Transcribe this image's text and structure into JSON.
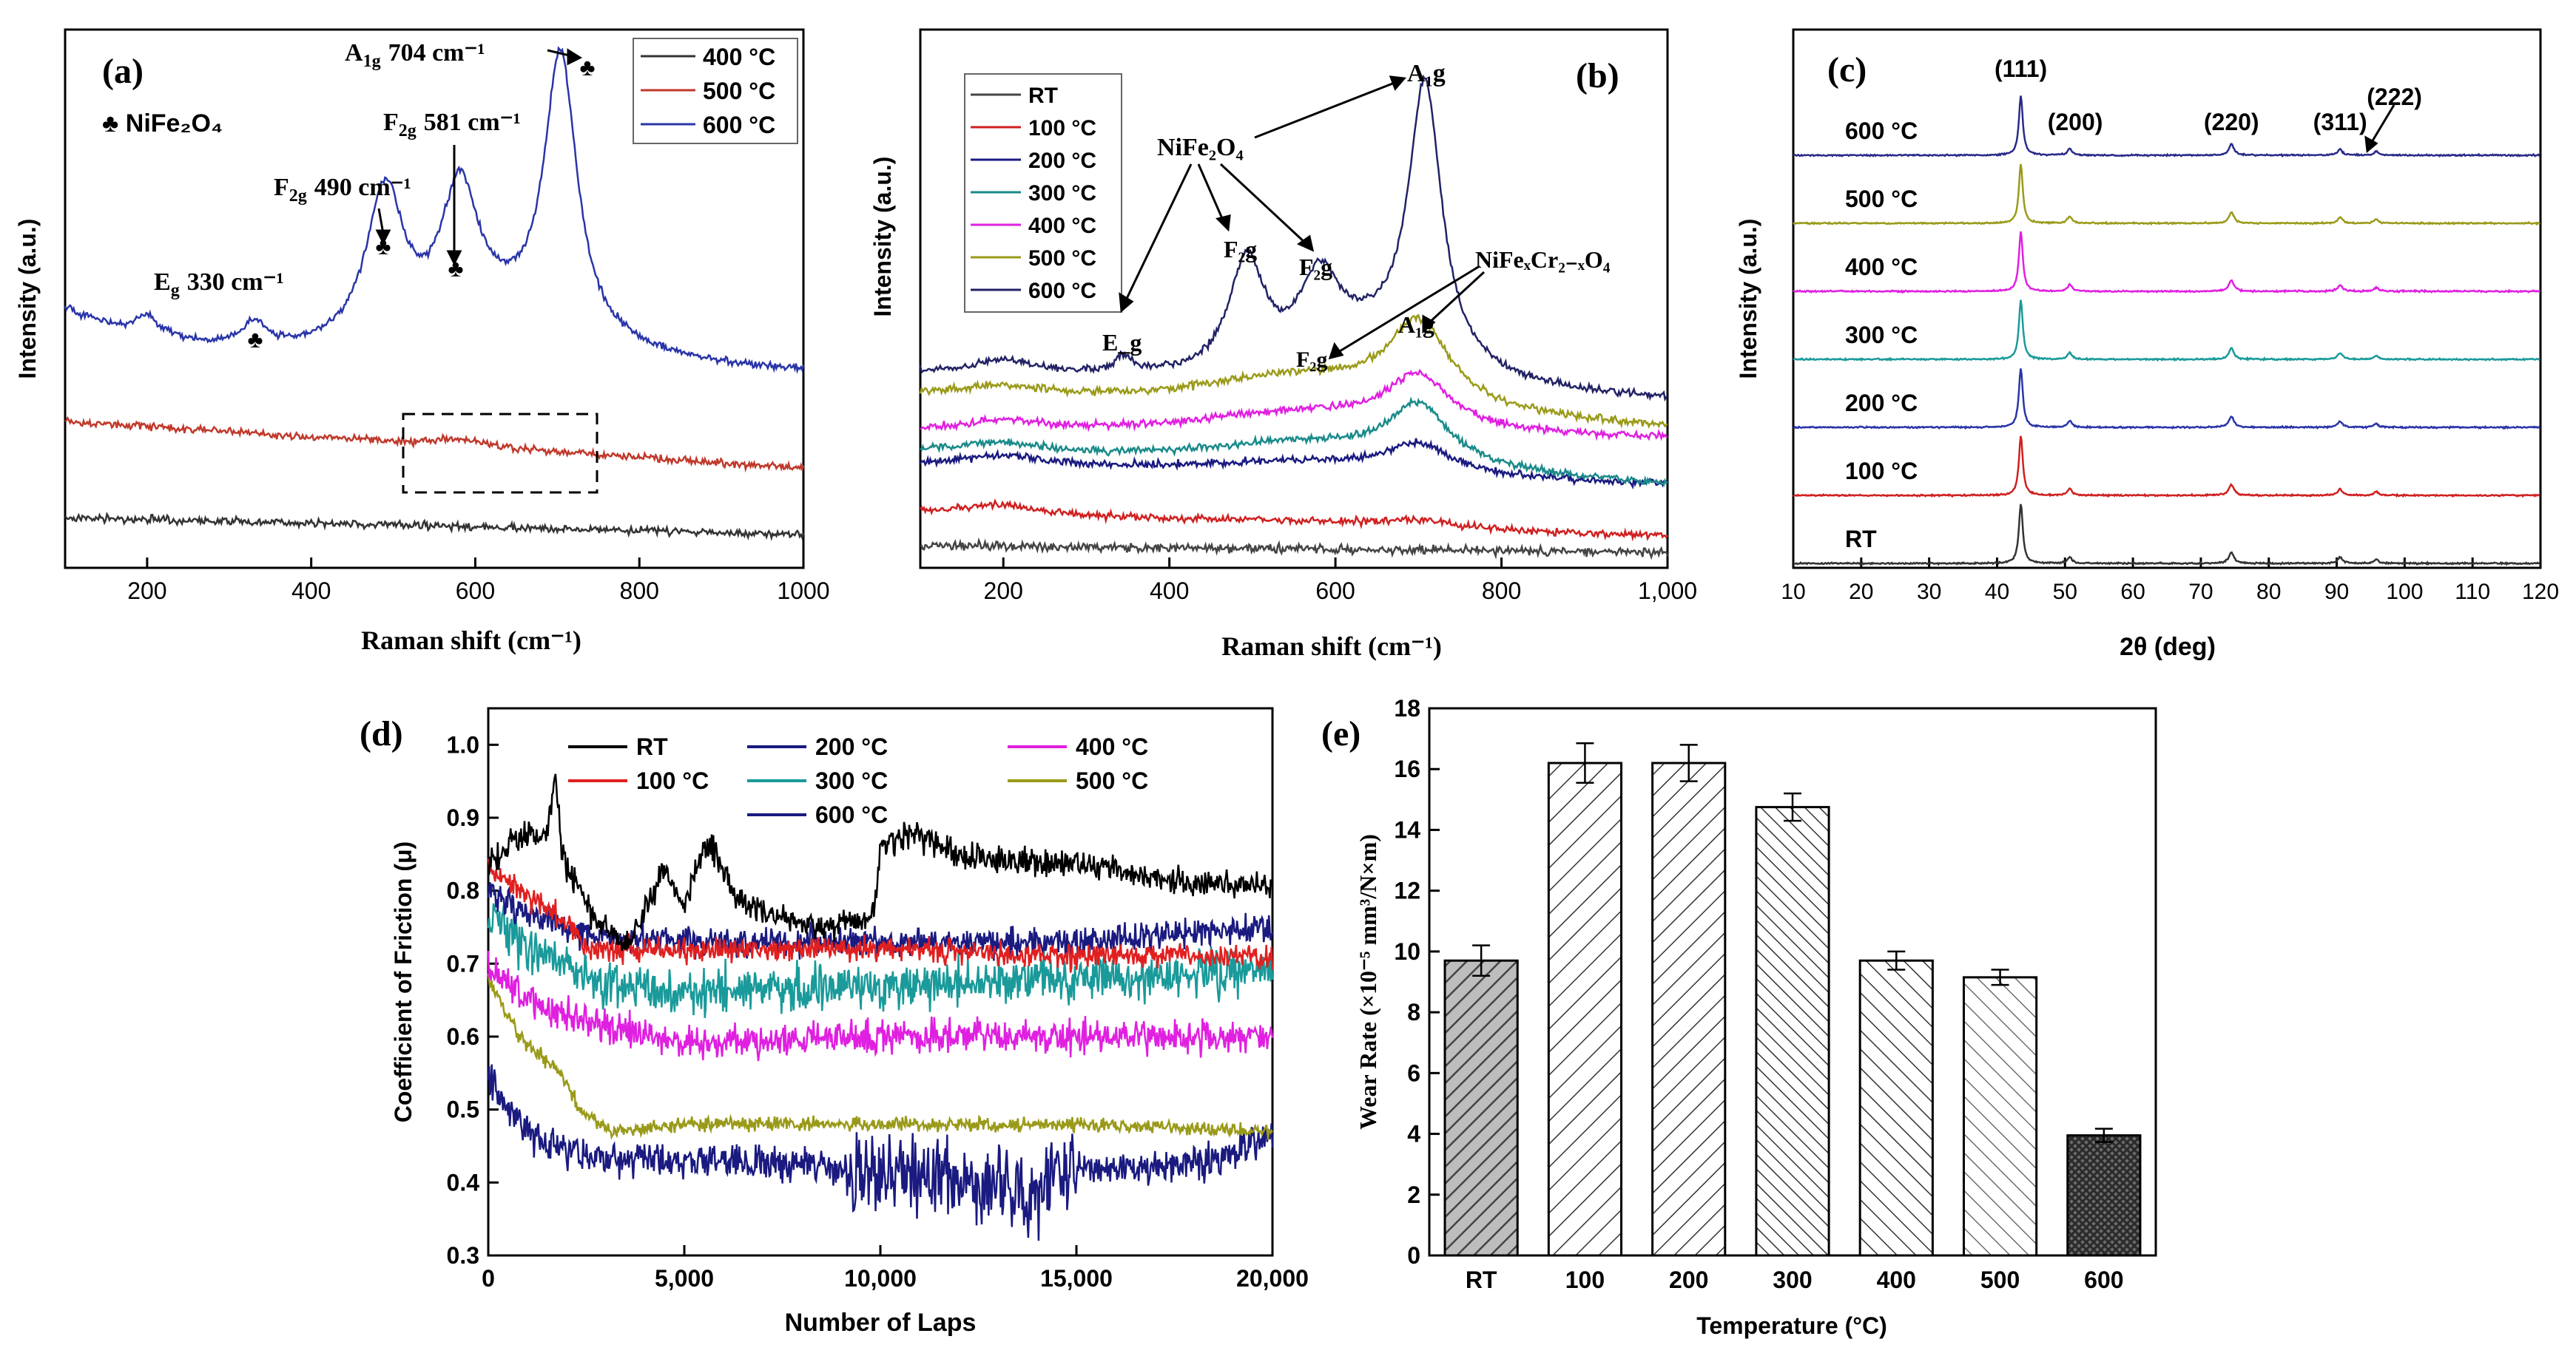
{
  "chart_data": [
    {
      "panel": "(a)",
      "type": "line",
      "xlabel": "Raman shift (cm⁻¹)",
      "ylabel": "Intensity (a.u.)",
      "xlim": [
        100,
        1000
      ],
      "xticks": [
        "200",
        "400",
        "600",
        "800",
        "1000"
      ],
      "marker_legend": "♣ NiFe₂O₄",
      "legend_placement": "top-right",
      "series": [
        {
          "name": "400 °C",
          "color": "#333333",
          "peaks": []
        },
        {
          "name": "500 °C",
          "color": "#c0392b",
          "peaks": [
            [
              580,
              0.06
            ]
          ]
        },
        {
          "name": "600 °C",
          "color": "#2a35a8",
          "peaks": [
            [
              200,
              0.07
            ],
            [
              330,
              0.08
            ],
            [
              490,
              0.55
            ],
            [
              581,
              0.5
            ],
            [
              704,
              1.0
            ]
          ]
        }
      ],
      "annotations": [
        {
          "text": "E",
          "sub": "g",
          "value": "330 cm⁻¹",
          "x": 330
        },
        {
          "text": "F",
          "sub": "2g",
          "value": "490 cm⁻¹",
          "x": 490
        },
        {
          "text": "F",
          "sub": "2g",
          "value": "581 cm⁻¹",
          "x": 581
        },
        {
          "text": "A",
          "sub": "1g",
          "value": "704 cm⁻¹",
          "x": 704
        }
      ],
      "highlight_box_x": [
        515,
        745
      ]
    },
    {
      "panel": "(b)",
      "type": "line",
      "xlabel": "Raman shift (cm⁻¹)",
      "ylabel": "Intensity (a.u.)",
      "xlim": [
        100,
        1000
      ],
      "xticks": [
        "200",
        "400",
        "600",
        "800",
        "1,000"
      ],
      "legend_placement": "top-left",
      "series": [
        {
          "name": "RT",
          "color": "#444444"
        },
        {
          "name": "100 °C",
          "color": "#d02020"
        },
        {
          "name": "200 °C",
          "color": "#1a1a80"
        },
        {
          "name": "300 °C",
          "color": "#1a8a8a"
        },
        {
          "name": "400 °C",
          "color": "#e020e0"
        },
        {
          "name": "500 °C",
          "color": "#9a9a1a"
        },
        {
          "name": "600 °C",
          "color": "#222266"
        }
      ],
      "annotations": [
        "NiFe₂O₄",
        "A₁g",
        "E_g",
        "F₂g",
        "F₂g",
        "NiFeₓCr₂₋ₓO₄",
        "F₂g",
        "A₁g"
      ]
    },
    {
      "panel": "(c)",
      "type": "line",
      "xlabel": "2θ (deg)",
      "ylabel": "Intensity (a.u.)",
      "xlim": [
        10,
        120
      ],
      "xticks": [
        "10",
        "20",
        "30",
        "40",
        "50",
        "60",
        "70",
        "80",
        "90",
        "100",
        "110",
        "120"
      ],
      "peaks_2theta": [
        43.5,
        50.7,
        74.5,
        90.5,
        95.8
      ],
      "peak_labels": [
        "(111)",
        "(200)",
        "(220)",
        "(311)",
        "(222)"
      ],
      "series": [
        {
          "name": "RT",
          "color": "#333333"
        },
        {
          "name": "100 °C",
          "color": "#d02020"
        },
        {
          "name": "200 °C",
          "color": "#2a35a8"
        },
        {
          "name": "300 °C",
          "color": "#1a9a9a"
        },
        {
          "name": "400 °C",
          "color": "#e020e0"
        },
        {
          "name": "500 °C",
          "color": "#9a9a1a"
        },
        {
          "name": "600 °C",
          "color": "#2a2a8a"
        }
      ]
    },
    {
      "panel": "(d)",
      "type": "line",
      "xlabel": "Number of Laps",
      "ylabel": "Coefficient of Friction (μ)",
      "xlim": [
        0,
        20000
      ],
      "ylim": [
        0.3,
        1.05
      ],
      "xticks": [
        "0",
        "5,000",
        "10,000",
        "15,000",
        "20,000"
      ],
      "yticks": [
        "0.3",
        "0.4",
        "0.5",
        "0.6",
        "0.7",
        "0.8",
        "0.9",
        "1.0"
      ],
      "legend_placement": "top",
      "series": [
        {
          "name": "RT",
          "color": "#000000",
          "points": [
            [
              0,
              0.83
            ],
            [
              600,
              0.87
            ],
            [
              1500,
              0.88
            ],
            [
              1700,
              0.96
            ],
            [
              1900,
              0.85
            ],
            [
              2500,
              0.78
            ],
            [
              3500,
              0.72
            ],
            [
              4500,
              0.83
            ],
            [
              5000,
              0.78
            ],
            [
              5600,
              0.87
            ],
            [
              6500,
              0.78
            ],
            [
              8000,
              0.75
            ],
            [
              9800,
              0.76
            ],
            [
              10000,
              0.86
            ],
            [
              10800,
              0.88
            ],
            [
              12000,
              0.85
            ],
            [
              14000,
              0.84
            ],
            [
              16000,
              0.83
            ],
            [
              18000,
              0.81
            ],
            [
              20000,
              0.81
            ]
          ],
          "noise": 0.012
        },
        {
          "name": "100 °C",
          "color": "#e02020",
          "points": [
            [
              0,
              0.83
            ],
            [
              1000,
              0.79
            ],
            [
              2000,
              0.76
            ],
            [
              2500,
              0.72
            ],
            [
              5000,
              0.72
            ],
            [
              10000,
              0.72
            ],
            [
              15000,
              0.71
            ],
            [
              20000,
              0.71
            ]
          ],
          "noise": 0.01
        },
        {
          "name": "200 °C",
          "color": "#1a1a80",
          "points": [
            [
              0,
              0.8
            ],
            [
              1000,
              0.77
            ],
            [
              2500,
              0.74
            ],
            [
              5000,
              0.73
            ],
            [
              10000,
              0.73
            ],
            [
              15000,
              0.73
            ],
            [
              20000,
              0.75
            ]
          ],
          "noise": 0.012
        },
        {
          "name": "300 °C",
          "color": "#1a9a9a",
          "points": [
            [
              0,
              0.76
            ],
            [
              1000,
              0.72
            ],
            [
              2500,
              0.68
            ],
            [
              5000,
              0.66
            ],
            [
              10000,
              0.67
            ],
            [
              15000,
              0.68
            ],
            [
              20000,
              0.69
            ]
          ],
          "noise": 0.02
        },
        {
          "name": "400 °C",
          "color": "#e020e0",
          "points": [
            [
              0,
              0.7
            ],
            [
              1000,
              0.65
            ],
            [
              2500,
              0.62
            ],
            [
              5000,
              0.59
            ],
            [
              10000,
              0.6
            ],
            [
              15000,
              0.6
            ],
            [
              20000,
              0.6
            ]
          ],
          "noise": 0.014
        },
        {
          "name": "500 °C",
          "color": "#9a9a1a",
          "points": [
            [
              0,
              0.68
            ],
            [
              800,
              0.6
            ],
            [
              2000,
              0.54
            ],
            [
              2300,
              0.5
            ],
            [
              3200,
              0.47
            ],
            [
              5000,
              0.48
            ],
            [
              10000,
              0.48
            ],
            [
              15000,
              0.48
            ],
            [
              20000,
              0.47
            ]
          ],
          "noise": 0.006
        },
        {
          "name": "600 °C",
          "color": "#1a1a80",
          "points": [
            [
              0,
              0.55
            ],
            [
              500,
              0.5
            ],
            [
              1500,
              0.45
            ],
            [
              3000,
              0.43
            ],
            [
              6000,
              0.43
            ],
            [
              9000,
              0.42
            ],
            [
              11000,
              0.41
            ],
            [
              13000,
              0.4
            ],
            [
              14000,
              0.38
            ],
            [
              15000,
              0.42
            ],
            [
              17000,
              0.42
            ],
            [
              19000,
              0.44
            ],
            [
              20000,
              0.47
            ]
          ],
          "noise": 0.015
        }
      ]
    },
    {
      "panel": "(e)",
      "type": "bar",
      "xlabel": "Temperature (°C)",
      "ylabel": "Wear Rate (×10⁻⁵ mm³/N×m)",
      "categories": [
        "RT",
        "100",
        "200",
        "300",
        "400",
        "500",
        "600"
      ],
      "values": [
        9.7,
        16.2,
        16.2,
        14.75,
        9.7,
        9.15,
        3.95
      ],
      "errors": [
        0.5,
        0.65,
        0.6,
        0.45,
        0.3,
        0.25,
        0.22
      ],
      "ylim": [
        0,
        18
      ],
      "yticks": [
        "0",
        "2",
        "4",
        "6",
        "8",
        "10",
        "12",
        "14",
        "16",
        "18"
      ]
    }
  ]
}
